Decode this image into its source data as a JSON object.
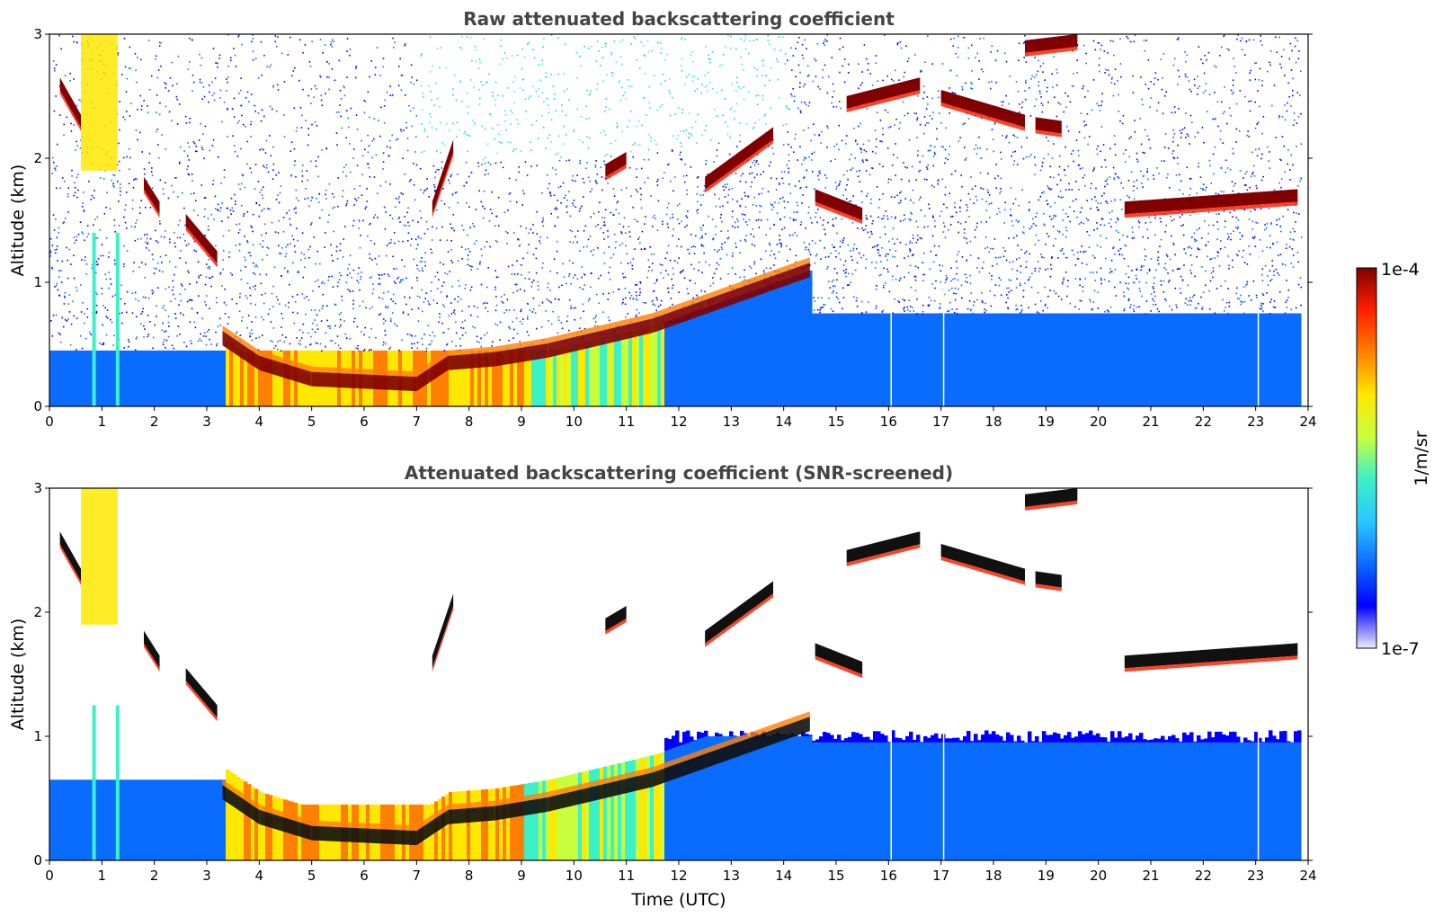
{
  "chart_data": [
    {
      "type": "heatmap",
      "title": "Raw attenuated backscattering coefficient",
      "xlabel": "",
      "ylabel": "Altitude (km)",
      "xlim": [
        0,
        24
      ],
      "ylim": [
        0,
        3
      ],
      "x_ticks": [
        "0",
        "1",
        "2",
        "3",
        "4",
        "5",
        "6",
        "7",
        "8",
        "9",
        "10",
        "11",
        "12",
        "13",
        "14",
        "15",
        "16",
        "17",
        "18",
        "19",
        "20",
        "21",
        "22",
        "23",
        "24"
      ],
      "y_ticks": [
        "0",
        "1",
        "2",
        "3"
      ],
      "screened": false,
      "features": {
        "boundary_layer": [
          [
            3.3,
            0.55
          ],
          [
            4,
            0.35
          ],
          [
            5,
            0.22
          ],
          [
            6,
            0.2
          ],
          [
            7,
            0.18
          ],
          [
            7.6,
            0.35
          ],
          [
            8.5,
            0.38
          ],
          [
            9.5,
            0.45
          ],
          [
            10.5,
            0.55
          ],
          [
            11.5,
            0.65
          ],
          [
            12.5,
            0.8
          ],
          [
            13.5,
            0.95
          ],
          [
            14.5,
            1.1
          ]
        ],
        "cloud_layers": [
          {
            "x": [
              15.2,
              16.6
            ],
            "y": [
              2.45,
              2.6
            ]
          },
          {
            "x": [
              17.0,
              18.6
            ],
            "y": [
              2.5,
              2.3
            ]
          },
          {
            "x": [
              18.8,
              19.3
            ],
            "y": [
              2.28,
              2.25
            ]
          },
          {
            "x": [
              18.6,
              19.6
            ],
            "y": [
              2.9,
              2.95
            ]
          },
          {
            "x": [
              20.5,
              23.8
            ],
            "y": [
              1.6,
              1.7
            ]
          },
          {
            "x": [
              14.6,
              15.5
            ],
            "y": [
              1.7,
              1.55
            ]
          },
          {
            "x": [
              12.5,
              13.8
            ],
            "y": [
              1.8,
              2.2
            ]
          },
          {
            "x": [
              10.6,
              11.0
            ],
            "y": [
              1.9,
              2.0
            ]
          },
          {
            "x": [
              7.3,
              7.7
            ],
            "y": [
              1.6,
              2.1
            ]
          },
          {
            "x": [
              0.2,
              0.6
            ],
            "y": [
              2.6,
              2.3
            ]
          },
          {
            "x": [
              1.8,
              2.1
            ],
            "y": [
              1.8,
              1.6
            ]
          },
          {
            "x": [
              2.6,
              3.2
            ],
            "y": [
              1.5,
              1.2
            ]
          }
        ],
        "fog_columns": [
          0.85,
          1.3
        ],
        "dropout_lines": [
          16.05,
          17.05,
          23.05
        ]
      }
    },
    {
      "type": "heatmap",
      "title": "Attenuated backscattering coefficient (SNR-screened)",
      "xlabel": "Time (UTC)",
      "ylabel": "Altitude (km)",
      "xlim": [
        0,
        24
      ],
      "ylim": [
        0,
        3
      ],
      "x_ticks": [
        "0",
        "1",
        "2",
        "3",
        "4",
        "5",
        "6",
        "7",
        "8",
        "9",
        "10",
        "11",
        "12",
        "13",
        "14",
        "15",
        "16",
        "17",
        "18",
        "19",
        "20",
        "21",
        "22",
        "23",
        "24"
      ],
      "y_ticks": [
        "0",
        "1",
        "2",
        "3"
      ],
      "screened": true
    }
  ],
  "colorbar": {
    "label": "1/m/sr",
    "max_label": "1e-4",
    "min_label": "1e-7",
    "range": [
      1e-07,
      0.0001
    ],
    "scale": "log",
    "colormap": "jet",
    "colors": [
      "#ececf8",
      "#0000ff",
      "#0a6cff",
      "#28c8ff",
      "#3cf0c8",
      "#c8ff3c",
      "#ffe800",
      "#ff8000",
      "#ff2000",
      "#800000"
    ]
  }
}
